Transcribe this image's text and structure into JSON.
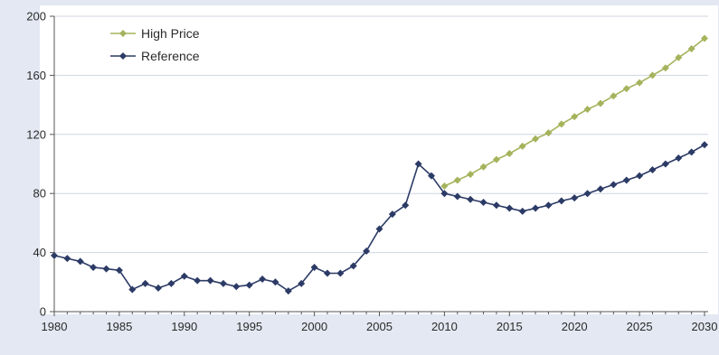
{
  "chart_data": {
    "type": "line",
    "title": "",
    "xlabel": "",
    "ylabel": "",
    "xlim": [
      1980,
      2030
    ],
    "ylim": [
      0,
      200
    ],
    "x_ticks": [
      1980,
      1985,
      1990,
      1995,
      2000,
      2005,
      2010,
      2015,
      2020,
      2025,
      2030
    ],
    "y_ticks": [
      0,
      40,
      80,
      120,
      160,
      200
    ],
    "grid": "horizontal",
    "legend_position": "top-left",
    "series": [
      {
        "name": "High Price",
        "color": "#a5b35c",
        "marker": "diamond",
        "x": [
          2010,
          2011,
          2012,
          2013,
          2014,
          2015,
          2016,
          2017,
          2018,
          2019,
          2020,
          2021,
          2022,
          2023,
          2024,
          2025,
          2026,
          2027,
          2028,
          2029,
          2030
        ],
        "y": [
          85,
          89,
          93,
          98,
          103,
          107,
          112,
          117,
          121,
          127,
          132,
          137,
          141,
          146,
          151,
          155,
          160,
          165,
          172,
          178,
          185
        ]
      },
      {
        "name": "Reference",
        "color": "#2c3b66",
        "marker": "diamond",
        "x": [
          1980,
          1981,
          1982,
          1983,
          1984,
          1985,
          1986,
          1987,
          1988,
          1989,
          1990,
          1991,
          1992,
          1993,
          1994,
          1995,
          1996,
          1997,
          1998,
          1999,
          2000,
          2001,
          2002,
          2003,
          2004,
          2005,
          2006,
          2007,
          2008,
          2009,
          2010,
          2011,
          2012,
          2013,
          2014,
          2015,
          2016,
          2017,
          2018,
          2019,
          2020,
          2021,
          2022,
          2023,
          2024,
          2025,
          2026,
          2027,
          2028,
          2029,
          2030
        ],
        "y": [
          38,
          36,
          34,
          30,
          29,
          28,
          15,
          19,
          16,
          19,
          24,
          21,
          21,
          19,
          17,
          18,
          22,
          20,
          14,
          19,
          30,
          26,
          26,
          31,
          41,
          56,
          66,
          72,
          100,
          92,
          80,
          78,
          76,
          74,
          72,
          70,
          68,
          70,
          72,
          75,
          77,
          80,
          83,
          86,
          89,
          92,
          96,
          100,
          104,
          108,
          113
        ]
      }
    ]
  }
}
